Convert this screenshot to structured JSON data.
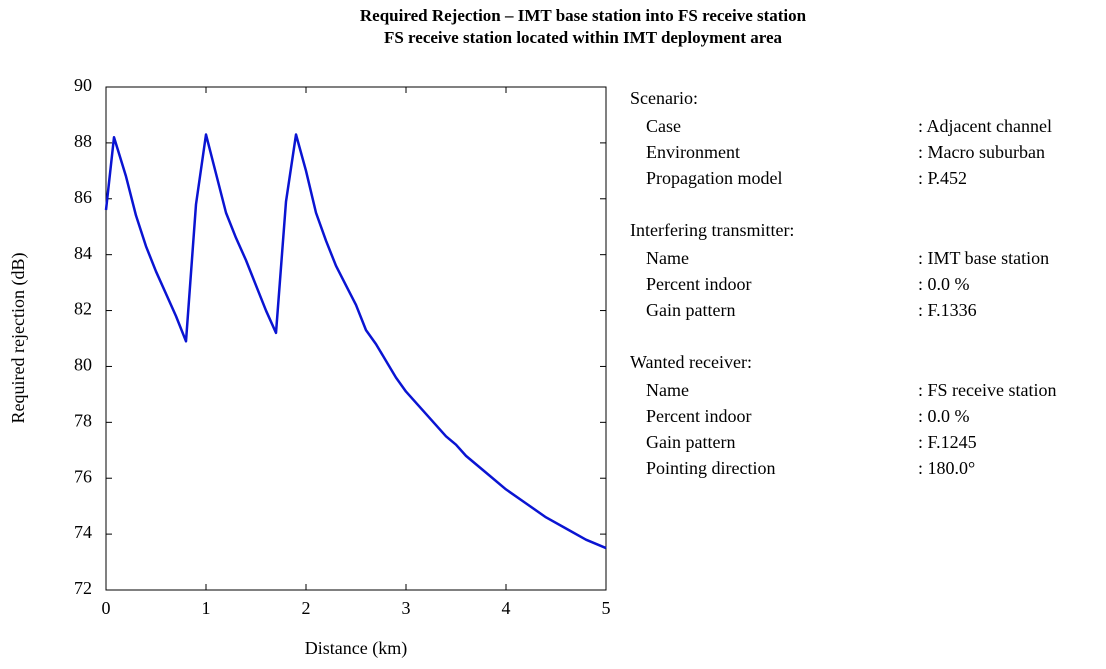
{
  "chart_data": {
    "type": "line",
    "title": [
      "Required Rejection – IMT base station into FS receive station",
      "FS receive station located within IMT deployment area"
    ],
    "x_label": "Distance (km)",
    "y_label": "Required rejection (dB)",
    "x": [
      0,
      0.08,
      0.2,
      0.3,
      0.4,
      0.5,
      0.6,
      0.7,
      0.8,
      0.9,
      1.0,
      1.1,
      1.2,
      1.3,
      1.4,
      1.5,
      1.6,
      1.7,
      1.8,
      1.9,
      2.0,
      2.1,
      2.2,
      2.3,
      2.4,
      2.5,
      2.6,
      2.7,
      2.8,
      2.9,
      3.0,
      3.2,
      3.4,
      3.5,
      3.6,
      3.8,
      4.0,
      4.2,
      4.4,
      4.6,
      4.8,
      5.0
    ],
    "series": [
      {
        "color": "#0a14d2",
        "values": [
          85.6,
          88.2,
          86.8,
          85.4,
          84.3,
          83.4,
          82.6,
          81.8,
          80.9,
          85.8,
          88.3,
          86.9,
          85.5,
          84.6,
          83.8,
          82.9,
          82.0,
          81.2,
          85.9,
          88.3,
          87.0,
          85.5,
          84.5,
          83.6,
          82.9,
          82.2,
          81.3,
          80.8,
          80.2,
          79.6,
          79.1,
          78.3,
          77.5,
          77.2,
          76.8,
          76.2,
          75.6,
          75.1,
          74.6,
          74.2,
          73.8,
          73.5
        ]
      }
    ],
    "xlim": [
      0,
      5
    ],
    "xticks": [
      0,
      1,
      2,
      3,
      4,
      5
    ],
    "ylim": [
      72,
      90
    ],
    "yticks": [
      72,
      74,
      76,
      78,
      80,
      82,
      84,
      86,
      88,
      90
    ]
  },
  "info_panel": [
    {
      "heading": "Scenario:",
      "rows": [
        [
          "Case",
          ": Adjacent channel"
        ],
        [
          "Environment",
          ": Macro suburban"
        ],
        [
          "Propagation model",
          ": P.452"
        ]
      ]
    },
    {
      "heading": "Interfering transmitter:",
      "rows": [
        [
          "Name",
          ": IMT base station"
        ],
        [
          "Percent indoor",
          ": 0.0 %"
        ],
        [
          "Gain pattern",
          ": F.1336"
        ]
      ]
    },
    {
      "heading": "Wanted receiver:",
      "rows": [
        [
          "Name",
          ": FS receive station"
        ],
        [
          "Percent indoor",
          ": 0.0 %"
        ],
        [
          "Gain pattern",
          ": F.1245"
        ],
        [
          "Pointing direction",
          ": 180.0°"
        ]
      ]
    }
  ]
}
